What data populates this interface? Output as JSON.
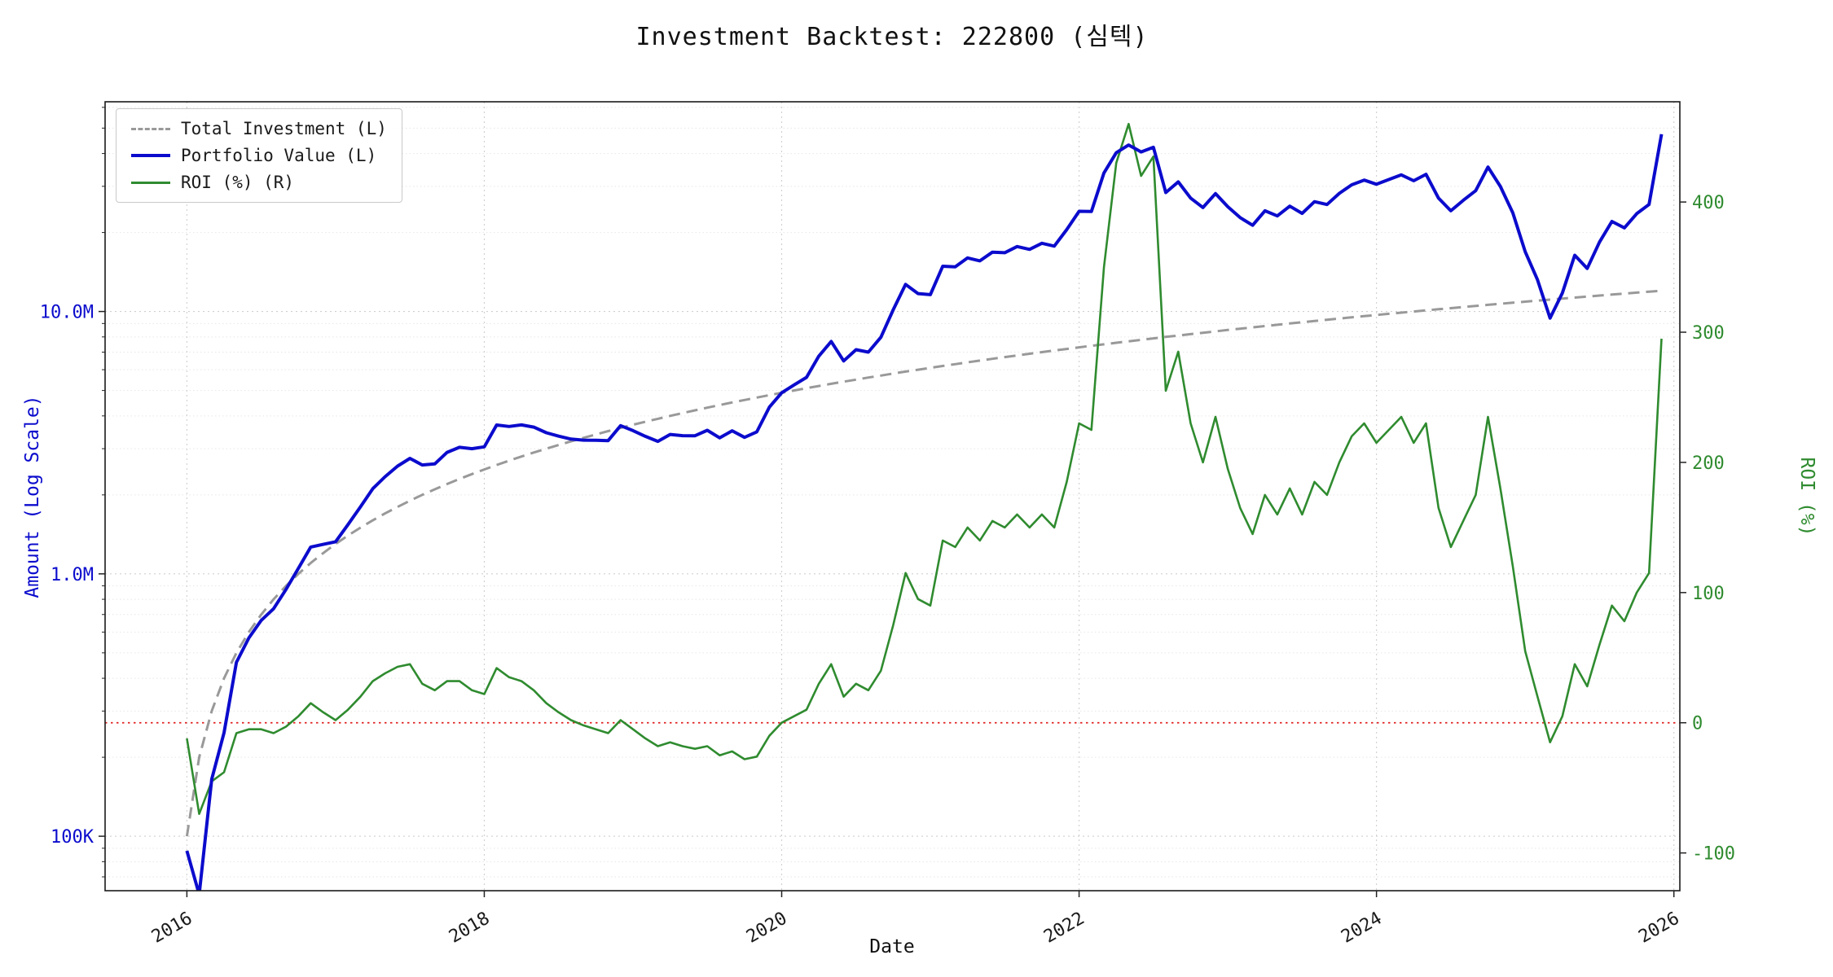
{
  "title": "Investment Backtest: 222800 (심텍)",
  "axes": {
    "x_label": "Date",
    "left_label": "Amount (Log Scale)",
    "right_label": "ROI (%)",
    "left_ticks": [
      {
        "value": 100000,
        "label": "100K"
      },
      {
        "value": 1000000,
        "label": "1.0M"
      },
      {
        "value": 10000000,
        "label": "10.0M"
      }
    ],
    "right_ticks": [
      {
        "value": -100,
        "label": "-100"
      },
      {
        "value": 0,
        "label": "0"
      },
      {
        "value": 100,
        "label": "100"
      },
      {
        "value": 200,
        "label": "200"
      },
      {
        "value": 300,
        "label": "300"
      },
      {
        "value": 400,
        "label": "400"
      }
    ],
    "x_ticks": [
      {
        "value": 2016,
        "label": "2016"
      },
      {
        "value": 2018,
        "label": "2018"
      },
      {
        "value": 2020,
        "label": "2020"
      },
      {
        "value": 2022,
        "label": "2022"
      },
      {
        "value": 2024,
        "label": "2024"
      },
      {
        "value": 2026,
        "label": "2026"
      }
    ]
  },
  "colors": {
    "portfolio": "#0b0bcd",
    "investment": "#999999",
    "roi": "#2f8b2f",
    "zero_line": "#e02020",
    "left_axis_text": "#0b0bcd",
    "right_axis_text": "#2f8b2f"
  },
  "chart_data": {
    "type": "line",
    "title": "Investment Backtest: 222800 (심텍)",
    "xlabel": "Date",
    "x_unit": "decimal_year",
    "x_range": [
      2015.45,
      2026.04
    ],
    "left_axis": {
      "scale": "log",
      "label": "Amount (Log Scale)",
      "range": [
        62000,
        63000000
      ]
    },
    "right_axis": {
      "scale": "linear",
      "label": "ROI (%)",
      "range": [
        -129,
        477
      ]
    },
    "zero_line": {
      "axis": "right",
      "value": 0
    },
    "grid": true,
    "legend_position": "upper-left",
    "x": [
      2016.0,
      2016.083,
      2016.167,
      2016.25,
      2016.333,
      2016.417,
      2016.5,
      2016.583,
      2016.667,
      2016.75,
      2016.833,
      2016.917,
      2017.0,
      2017.083,
      2017.167,
      2017.25,
      2017.333,
      2017.417,
      2017.5,
      2017.583,
      2017.667,
      2017.75,
      2017.833,
      2017.917,
      2018.0,
      2018.083,
      2018.167,
      2018.25,
      2018.333,
      2018.417,
      2018.5,
      2018.583,
      2018.667,
      2018.75,
      2018.833,
      2018.917,
      2019.0,
      2019.083,
      2019.167,
      2019.25,
      2019.333,
      2019.417,
      2019.5,
      2019.583,
      2019.667,
      2019.75,
      2019.833,
      2019.917,
      2020.0,
      2020.083,
      2020.167,
      2020.25,
      2020.333,
      2020.417,
      2020.5,
      2020.583,
      2020.667,
      2020.75,
      2020.833,
      2020.917,
      2021.0,
      2021.083,
      2021.167,
      2021.25,
      2021.333,
      2021.417,
      2021.5,
      2021.583,
      2021.667,
      2021.75,
      2021.833,
      2021.917,
      2022.0,
      2022.083,
      2022.167,
      2022.25,
      2022.333,
      2022.417,
      2022.5,
      2022.583,
      2022.667,
      2022.75,
      2022.833,
      2022.917,
      2023.0,
      2023.083,
      2023.167,
      2023.25,
      2023.333,
      2023.417,
      2023.5,
      2023.583,
      2023.667,
      2023.75,
      2023.833,
      2023.917,
      2024.0,
      2024.083,
      2024.167,
      2024.25,
      2024.333,
      2024.417,
      2024.5,
      2024.583,
      2024.667,
      2024.75,
      2024.833,
      2024.917,
      2025.0,
      2025.083,
      2025.167,
      2025.25,
      2025.333,
      2025.417,
      2025.5,
      2025.583,
      2025.667,
      2025.75,
      2025.833,
      2025.917
    ],
    "series": [
      {
        "name": "Total Investment (L)",
        "axis": "left",
        "style": "dashed",
        "color": "#999999",
        "values": [
          100000,
          200000,
          300000,
          400000,
          500000,
          600000,
          700000,
          800000,
          900000,
          1000000,
          1100000,
          1200000,
          1300000,
          1400000,
          1500000,
          1600000,
          1700000,
          1800000,
          1900000,
          2000000,
          2100000,
          2200000,
          2300000,
          2400000,
          2500000,
          2600000,
          2700000,
          2800000,
          2900000,
          3000000,
          3100000,
          3200000,
          3300000,
          3400000,
          3500000,
          3600000,
          3700000,
          3800000,
          3900000,
          4000000,
          4100000,
          4200000,
          4300000,
          4400000,
          4500000,
          4600000,
          4700000,
          4800000,
          4900000,
          5000000,
          5100000,
          5200000,
          5300000,
          5400000,
          5500000,
          5600000,
          5700000,
          5800000,
          5900000,
          6000000,
          6100000,
          6200000,
          6300000,
          6400000,
          6500000,
          6600000,
          6700000,
          6800000,
          6900000,
          7000000,
          7100000,
          7200000,
          7300000,
          7400000,
          7500000,
          7600000,
          7700000,
          7800000,
          7900000,
          8000000,
          8100000,
          8200000,
          8300000,
          8400000,
          8500000,
          8600000,
          8700000,
          8800000,
          8900000,
          9000000,
          9100000,
          9200000,
          9300000,
          9400000,
          9500000,
          9600000,
          9700000,
          9800000,
          9900000,
          10000000,
          10100000,
          10200000,
          10300000,
          10400000,
          10500000,
          10600000,
          10700000,
          10800000,
          10900000,
          11000000,
          11100000,
          11200000,
          11300000,
          11400000,
          11500000,
          11600000,
          11700000,
          11800000,
          11900000,
          12000000
        ]
      },
      {
        "name": "Portfolio Value (L)",
        "axis": "left",
        "style": "solid",
        "color": "#0b0bcd",
        "values": [
          88000,
          60000,
          165000,
          248000,
          460000,
          570000,
          665000,
          736000,
          873000,
          1050000,
          1265000,
          1296000,
          1326000,
          1540000,
          1800000,
          2112000,
          2346000,
          2574000,
          2755000,
          2600000,
          2625000,
          2904000,
          3036000,
          3000000,
          3050000,
          3692000,
          3645000,
          3696000,
          3625000,
          3450000,
          3348000,
          3264000,
          3234000,
          3230000,
          3220000,
          3672000,
          3515000,
          3344000,
          3198000,
          3400000,
          3362000,
          3360000,
          3526000,
          3300000,
          3510000,
          3312000,
          3478000,
          4320000,
          4900000,
          5250000,
          5610000,
          6760000,
          7685000,
          6480000,
          7150000,
          7000000,
          7980000,
          10150000,
          12685000,
          11700000,
          11590000,
          14880000,
          14805000,
          16000000,
          15600000,
          16830000,
          16750000,
          17680000,
          17250000,
          18200000,
          17750000,
          20520000,
          24090000,
          24050000,
          33750000,
          40280000,
          43120000,
          40560000,
          42265000,
          28400000,
          31185000,
          27060000,
          24900000,
          28140000,
          25075000,
          22790000,
          21315000,
          24200000,
          23140000,
          25200000,
          23660000,
          26220000,
          25575000,
          28200000,
          30400000,
          31680000,
          30555000,
          31850000,
          33165000,
          31500000,
          33330000,
          27030000,
          24205000,
          26520000,
          28875000,
          35510000,
          29960000,
          23760000,
          16895000,
          13200000,
          9435000,
          11760000,
          16385000,
          14592000,
          18400000,
          22040000,
          20826000,
          23600000,
          25585000,
          47400000
        ]
      },
      {
        "name": "ROI (%) (R)",
        "axis": "right",
        "style": "solid",
        "color": "#2f8b2f",
        "values": [
          -12,
          -70,
          -45,
          -38,
          -8,
          -5,
          -5,
          -8,
          -3,
          5,
          15,
          8,
          2,
          10,
          20,
          32,
          38,
          43,
          45,
          30,
          25,
          32,
          32,
          25,
          22,
          42,
          35,
          32,
          25,
          15,
          8,
          2,
          -2,
          -5,
          -8,
          2,
          -5,
          -12,
          -18,
          -15,
          -18,
          -20,
          -18,
          -25,
          -22,
          -28,
          -26,
          -10,
          0,
          5,
          10,
          30,
          45,
          20,
          30,
          25,
          40,
          75,
          115,
          95,
          90,
          140,
          135,
          150,
          140,
          155,
          150,
          160,
          150,
          160,
          150,
          185,
          230,
          225,
          350,
          430,
          460,
          420,
          435,
          255,
          285,
          230,
          200,
          235,
          195,
          165,
          145,
          175,
          160,
          180,
          160,
          185,
          175,
          200,
          220,
          230,
          215,
          225,
          235,
          215,
          230,
          165,
          135,
          155,
          175,
          235,
          180,
          120,
          55,
          20,
          -15,
          5,
          45,
          28,
          60,
          90,
          78,
          100,
          115,
          295
        ]
      }
    ]
  }
}
